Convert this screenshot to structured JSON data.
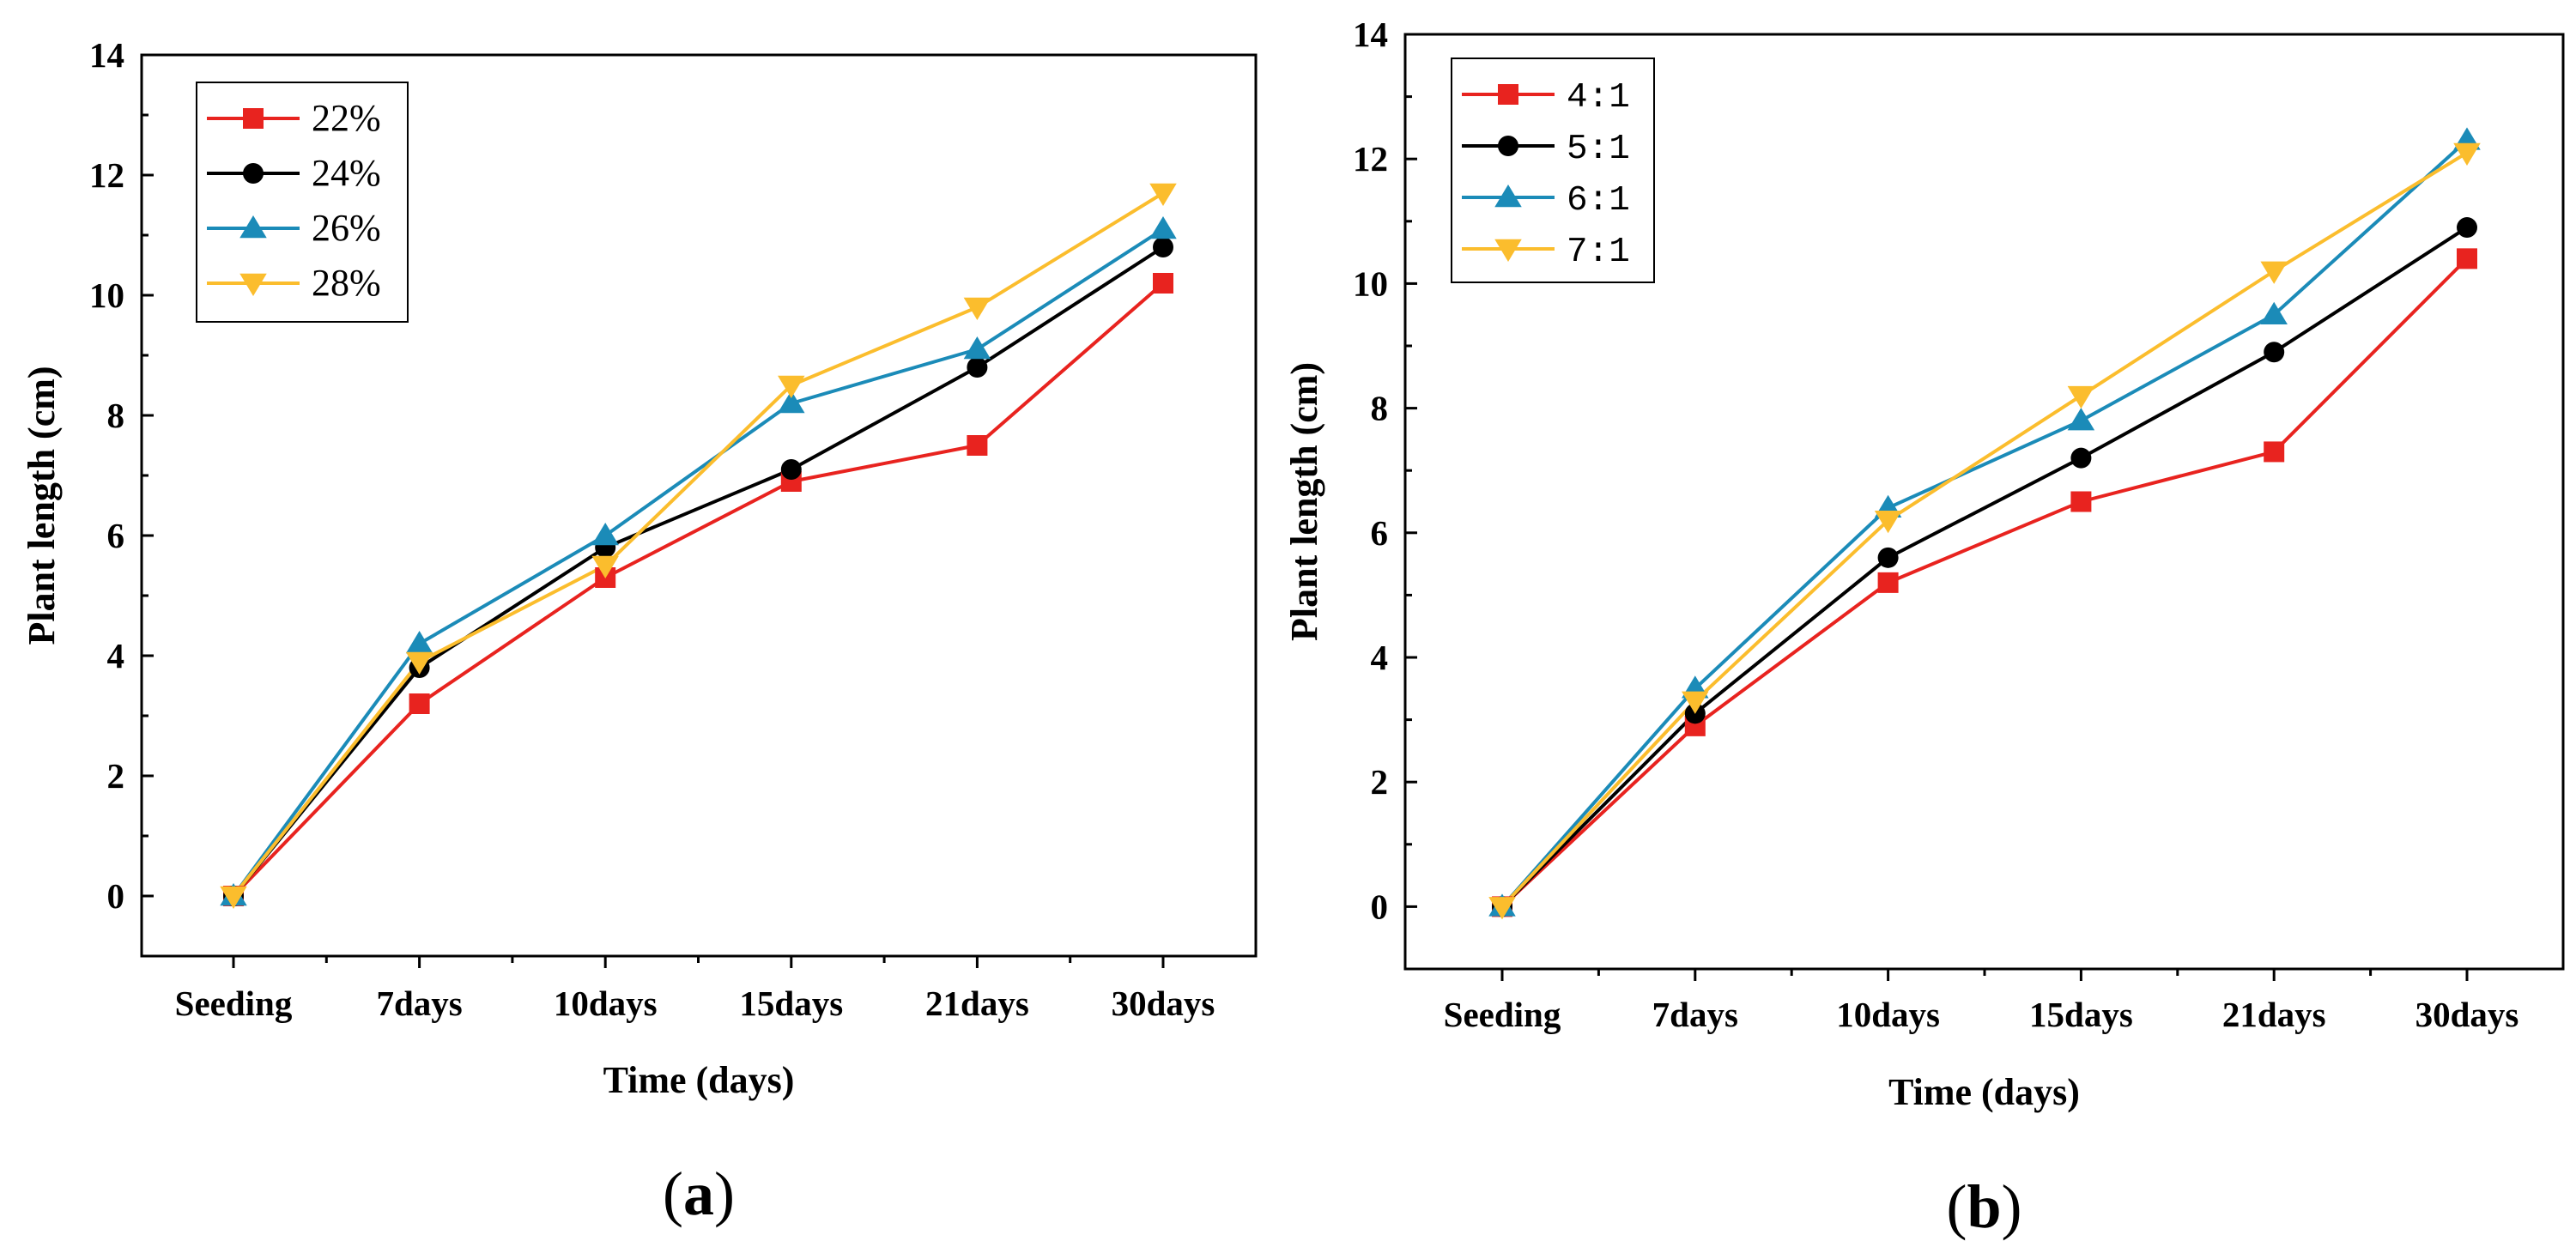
{
  "chart_data": [
    {
      "type": "line",
      "panel_label": {
        "open": "(",
        "letter": "a",
        "close": ")"
      },
      "categories": [
        "Seeding",
        "7days",
        "10days",
        "15days",
        "21days",
        "30days"
      ],
      "xlabel": "Time (days)",
      "ylabel": "Plant length (cm)",
      "ylim": [
        -1,
        14
      ],
      "yticks": [
        "0",
        "2",
        "4",
        "6",
        "8",
        "10",
        "12",
        "14"
      ],
      "legend_position": "top-left",
      "grid": false,
      "series": [
        {
          "name": "22%",
          "color": "#e8231f",
          "marker": "square",
          "values": [
            0,
            3.2,
            5.3,
            6.9,
            7.5,
            10.2
          ]
        },
        {
          "name": "24%",
          "color": "#000000",
          "marker": "circle",
          "values": [
            0,
            3.8,
            5.8,
            7.1,
            8.8,
            10.8
          ]
        },
        {
          "name": "26%",
          "color": "#1b8bb8",
          "marker": "triangle-up",
          "values": [
            0,
            4.2,
            6.0,
            8.2,
            9.1,
            11.1
          ]
        },
        {
          "name": "28%",
          "color": "#fbbd2d",
          "marker": "triangle-down",
          "values": [
            0,
            3.9,
            5.5,
            8.5,
            9.8,
            11.7
          ]
        }
      ]
    },
    {
      "type": "line",
      "panel_label": {
        "open": "(",
        "letter": "b",
        "close": ")"
      },
      "categories": [
        "Seeding",
        "7days",
        "10days",
        "15days",
        "21days",
        "30days"
      ],
      "xlabel": "Time (days)",
      "ylabel": "Plant length (cm)",
      "ylim": [
        -1,
        14
      ],
      "yticks": [
        "0",
        "2",
        "4",
        "6",
        "8",
        "10",
        "12",
        "14"
      ],
      "legend_position": "top-left",
      "grid": false,
      "series": [
        {
          "name": "4:1",
          "color": "#e8231f",
          "marker": "square",
          "values": [
            0,
            2.9,
            5.2,
            6.5,
            7.3,
            10.4
          ]
        },
        {
          "name": "5:1",
          "color": "#000000",
          "marker": "circle",
          "values": [
            0,
            3.1,
            5.6,
            7.2,
            8.9,
            10.9
          ]
        },
        {
          "name": "6:1",
          "color": "#1b8bb8",
          "marker": "triangle-up",
          "values": [
            0,
            3.5,
            6.4,
            7.8,
            9.5,
            12.3
          ]
        },
        {
          "name": "7:1",
          "color": "#fbbd2d",
          "marker": "triangle-down",
          "values": [
            0,
            3.3,
            6.2,
            8.2,
            10.2,
            12.1
          ]
        }
      ]
    }
  ]
}
